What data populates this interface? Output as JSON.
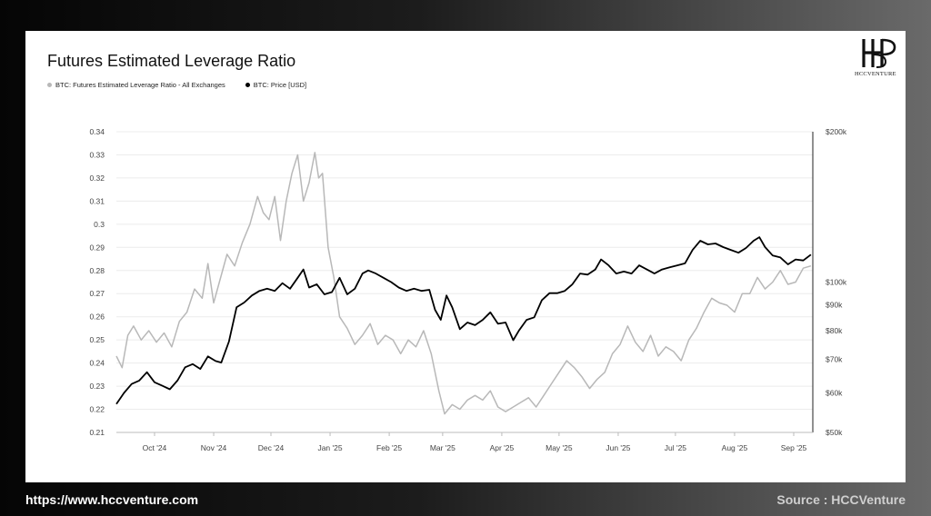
{
  "footer": {
    "url": "https://www.hccventure.com",
    "source": "Source : HCCVenture"
  },
  "logo": {
    "brand": "HCCVENTURE",
    "icon": "hcc-monogram-icon"
  },
  "chart_data": {
    "type": "line",
    "title": "Futures Estimated Leverage Ratio",
    "x_ticks": [
      "Oct '24",
      "Nov '24",
      "Dec '24",
      "Jan '25",
      "Feb '25",
      "Mar '25",
      "Apr '25",
      "May '25",
      "Jun '25",
      "Jul '25",
      "Aug '25",
      "Sep '25"
    ],
    "x_range": [
      "2024-09-11",
      "2025-09-11"
    ],
    "y_left": {
      "ticks": [
        "0.34",
        "0.33",
        "0.32",
        "0.31",
        "0.3",
        "0.29",
        "0.28",
        "0.27",
        "0.26",
        "0.25",
        "0.24",
        "0.23",
        "0.22",
        "0.21"
      ],
      "ylim": [
        0.21,
        0.34
      ]
    },
    "y_right": {
      "ticks": [
        "$200k",
        "$100k",
        "$90k",
        "$80k",
        "$70k",
        "$60k",
        "$50k"
      ],
      "values": [
        200000,
        100000,
        90000,
        80000,
        70000,
        60000,
        50000
      ],
      "scale": "log",
      "ylim": [
        50000,
        200000
      ]
    },
    "grid": true,
    "legend_position": "top-left",
    "series": [
      {
        "name": "BTC: Futures Estimated Leverage Ratio - All Exchanges",
        "axis": "left",
        "color": "#b8b8b8",
        "points": [
          [
            "2024-09-11",
            0.243
          ],
          [
            "2024-09-14",
            0.238
          ],
          [
            "2024-09-17",
            0.252
          ],
          [
            "2024-09-20",
            0.256
          ],
          [
            "2024-09-24",
            0.25
          ],
          [
            "2024-09-28",
            0.254
          ],
          [
            "2024-10-02",
            0.249
          ],
          [
            "2024-10-06",
            0.253
          ],
          [
            "2024-10-10",
            0.247
          ],
          [
            "2024-10-14",
            0.258
          ],
          [
            "2024-10-18",
            0.262
          ],
          [
            "2024-10-22",
            0.272
          ],
          [
            "2024-10-26",
            0.268
          ],
          [
            "2024-10-29",
            0.283
          ],
          [
            "2024-11-01",
            0.266
          ],
          [
            "2024-11-04",
            0.275
          ],
          [
            "2024-11-08",
            0.287
          ],
          [
            "2024-11-12",
            0.282
          ],
          [
            "2024-11-16",
            0.292
          ],
          [
            "2024-11-20",
            0.3
          ],
          [
            "2024-11-24",
            0.312
          ],
          [
            "2024-11-27",
            0.305
          ],
          [
            "2024-11-30",
            0.302
          ],
          [
            "2024-12-03",
            0.312
          ],
          [
            "2024-12-06",
            0.293
          ],
          [
            "2024-12-09",
            0.31
          ],
          [
            "2024-12-12",
            0.322
          ],
          [
            "2024-12-15",
            0.33
          ],
          [
            "2024-12-18",
            0.31
          ],
          [
            "2024-12-21",
            0.318
          ],
          [
            "2024-12-24",
            0.331
          ],
          [
            "2024-12-26",
            0.32
          ],
          [
            "2024-12-28",
            0.322
          ],
          [
            "2024-12-31",
            0.29
          ],
          [
            "2025-01-03",
            0.277
          ],
          [
            "2025-01-06",
            0.26
          ],
          [
            "2025-01-10",
            0.255
          ],
          [
            "2025-01-14",
            0.248
          ],
          [
            "2025-01-18",
            0.252
          ],
          [
            "2025-01-22",
            0.257
          ],
          [
            "2025-01-26",
            0.248
          ],
          [
            "2025-01-30",
            0.252
          ],
          [
            "2025-02-03",
            0.25
          ],
          [
            "2025-02-07",
            0.244
          ],
          [
            "2025-02-11",
            0.25
          ],
          [
            "2025-02-15",
            0.247
          ],
          [
            "2025-02-19",
            0.254
          ],
          [
            "2025-02-23",
            0.244
          ],
          [
            "2025-02-27",
            0.228
          ],
          [
            "2025-03-02",
            0.218
          ],
          [
            "2025-03-06",
            0.222
          ],
          [
            "2025-03-10",
            0.22
          ],
          [
            "2025-03-14",
            0.224
          ],
          [
            "2025-03-18",
            0.226
          ],
          [
            "2025-03-22",
            0.224
          ],
          [
            "2025-03-26",
            0.228
          ],
          [
            "2025-03-30",
            0.221
          ],
          [
            "2025-04-03",
            0.219
          ],
          [
            "2025-04-07",
            0.221
          ],
          [
            "2025-04-11",
            0.223
          ],
          [
            "2025-04-15",
            0.225
          ],
          [
            "2025-04-19",
            0.221
          ],
          [
            "2025-04-23",
            0.226
          ],
          [
            "2025-04-27",
            0.231
          ],
          [
            "2025-05-01",
            0.236
          ],
          [
            "2025-05-05",
            0.241
          ],
          [
            "2025-05-09",
            0.238
          ],
          [
            "2025-05-13",
            0.234
          ],
          [
            "2025-05-17",
            0.229
          ],
          [
            "2025-05-21",
            0.233
          ],
          [
            "2025-05-25",
            0.236
          ],
          [
            "2025-05-29",
            0.244
          ],
          [
            "2025-06-02",
            0.248
          ],
          [
            "2025-06-06",
            0.256
          ],
          [
            "2025-06-10",
            0.249
          ],
          [
            "2025-06-14",
            0.245
          ],
          [
            "2025-06-18",
            0.252
          ],
          [
            "2025-06-22",
            0.243
          ],
          [
            "2025-06-26",
            0.247
          ],
          [
            "2025-06-30",
            0.245
          ],
          [
            "2025-07-04",
            0.241
          ],
          [
            "2025-07-08",
            0.25
          ],
          [
            "2025-07-12",
            0.255
          ],
          [
            "2025-07-16",
            0.262
          ],
          [
            "2025-07-20",
            0.268
          ],
          [
            "2025-07-24",
            0.266
          ],
          [
            "2025-07-28",
            0.265
          ],
          [
            "2025-08-01",
            0.262
          ],
          [
            "2025-08-05",
            0.27
          ],
          [
            "2025-08-09",
            0.27
          ],
          [
            "2025-08-13",
            0.277
          ],
          [
            "2025-08-17",
            0.272
          ],
          [
            "2025-08-21",
            0.275
          ],
          [
            "2025-08-25",
            0.28
          ],
          [
            "2025-08-29",
            0.274
          ],
          [
            "2025-09-02",
            0.275
          ],
          [
            "2025-09-06",
            0.281
          ],
          [
            "2025-09-10",
            0.282
          ]
        ]
      },
      {
        "name": "BTC: Price [USD]",
        "axis": "right",
        "color": "#000000",
        "points": [
          [
            "2024-09-11",
            57000
          ],
          [
            "2024-09-15",
            60000
          ],
          [
            "2024-09-19",
            62500
          ],
          [
            "2024-09-23",
            63500
          ],
          [
            "2024-09-27",
            66000
          ],
          [
            "2024-10-01",
            63000
          ],
          [
            "2024-10-05",
            62000
          ],
          [
            "2024-10-09",
            61000
          ],
          [
            "2024-10-13",
            63500
          ],
          [
            "2024-10-17",
            67500
          ],
          [
            "2024-10-21",
            68500
          ],
          [
            "2024-10-25",
            67000
          ],
          [
            "2024-10-29",
            71000
          ],
          [
            "2024-11-02",
            69500
          ],
          [
            "2024-11-05",
            69000
          ],
          [
            "2024-11-09",
            76000
          ],
          [
            "2024-11-13",
            89000
          ],
          [
            "2024-11-17",
            91000
          ],
          [
            "2024-11-21",
            94000
          ],
          [
            "2024-11-25",
            96000
          ],
          [
            "2024-11-29",
            97000
          ],
          [
            "2024-12-03",
            96000
          ],
          [
            "2024-12-07",
            99500
          ],
          [
            "2024-12-11",
            97000
          ],
          [
            "2024-12-15",
            102000
          ],
          [
            "2024-12-18",
            106000
          ],
          [
            "2024-12-21",
            97500
          ],
          [
            "2024-12-25",
            99000
          ],
          [
            "2024-12-29",
            94500
          ],
          [
            "2025-01-02",
            95500
          ],
          [
            "2025-01-06",
            102000
          ],
          [
            "2025-01-10",
            94500
          ],
          [
            "2025-01-14",
            97000
          ],
          [
            "2025-01-18",
            104000
          ],
          [
            "2025-01-21",
            105500
          ],
          [
            "2025-01-25",
            104000
          ],
          [
            "2025-01-29",
            102000
          ],
          [
            "2025-02-02",
            100000
          ],
          [
            "2025-02-06",
            97500
          ],
          [
            "2025-02-10",
            96000
          ],
          [
            "2025-02-14",
            97000
          ],
          [
            "2025-02-18",
            96000
          ],
          [
            "2025-02-22",
            96500
          ],
          [
            "2025-02-25",
            88000
          ],
          [
            "2025-02-28",
            84000
          ],
          [
            "2025-03-03",
            94000
          ],
          [
            "2025-03-06",
            89000
          ],
          [
            "2025-03-10",
            80500
          ],
          [
            "2025-03-14",
            83000
          ],
          [
            "2025-03-18",
            82000
          ],
          [
            "2025-03-22",
            84000
          ],
          [
            "2025-03-26",
            87000
          ],
          [
            "2025-03-30",
            82500
          ],
          [
            "2025-04-03",
            83000
          ],
          [
            "2025-04-07",
            76500
          ],
          [
            "2025-04-10",
            80000
          ],
          [
            "2025-04-14",
            84000
          ],
          [
            "2025-04-18",
            85000
          ],
          [
            "2025-04-22",
            92000
          ],
          [
            "2025-04-26",
            95000
          ],
          [
            "2025-04-30",
            95000
          ],
          [
            "2025-05-04",
            96000
          ],
          [
            "2025-05-08",
            99000
          ],
          [
            "2025-05-12",
            104000
          ],
          [
            "2025-05-16",
            103500
          ],
          [
            "2025-05-20",
            106000
          ],
          [
            "2025-05-23",
            111000
          ],
          [
            "2025-05-27",
            108000
          ],
          [
            "2025-05-31",
            104000
          ],
          [
            "2025-06-04",
            105000
          ],
          [
            "2025-06-08",
            104000
          ],
          [
            "2025-06-12",
            108000
          ],
          [
            "2025-06-16",
            106000
          ],
          [
            "2025-06-20",
            104000
          ],
          [
            "2025-06-24",
            106000
          ],
          [
            "2025-06-28",
            107000
          ],
          [
            "2025-07-02",
            108000
          ],
          [
            "2025-07-06",
            109000
          ],
          [
            "2025-07-10",
            116000
          ],
          [
            "2025-07-14",
            121000
          ],
          [
            "2025-07-18",
            119000
          ],
          [
            "2025-07-22",
            119500
          ],
          [
            "2025-07-26",
            117500
          ],
          [
            "2025-07-30",
            116000
          ],
          [
            "2025-08-03",
            114500
          ],
          [
            "2025-08-07",
            117000
          ],
          [
            "2025-08-11",
            121000
          ],
          [
            "2025-08-14",
            123000
          ],
          [
            "2025-08-17",
            117500
          ],
          [
            "2025-08-21",
            113000
          ],
          [
            "2025-08-25",
            112000
          ],
          [
            "2025-08-29",
            108500
          ],
          [
            "2025-09-02",
            111000
          ],
          [
            "2025-09-06",
            110500
          ],
          [
            "2025-09-10",
            113500
          ]
        ]
      }
    ]
  }
}
